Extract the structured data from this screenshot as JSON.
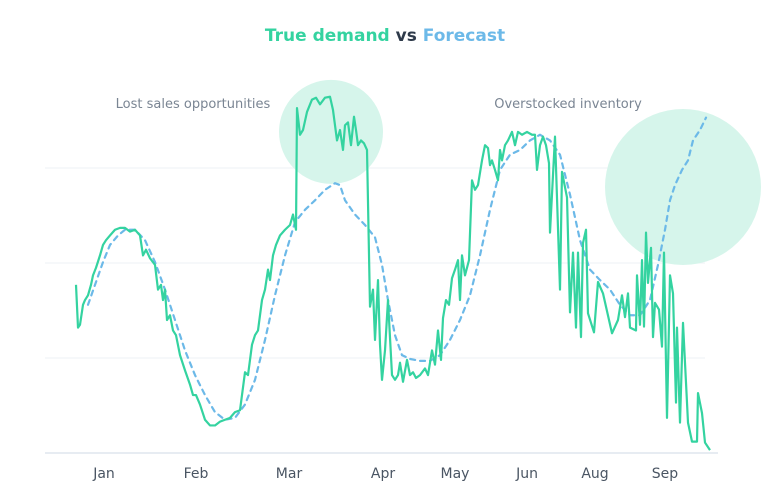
{
  "chart_data": {
    "type": "line",
    "title": {
      "part1": "True demand",
      "part2": "vs",
      "part3": "Forecast"
    },
    "xlabel": "",
    "ylabel": "",
    "xlim": [
      -16,
      322
    ],
    "ylim": [
      0,
      400
    ],
    "grid": true,
    "y_gridlines": [
      100,
      200,
      300
    ],
    "x_ticks": [
      {
        "label": "Jan",
        "x": 14
      },
      {
        "label": "Feb",
        "x": 60
      },
      {
        "label": "Mar",
        "x": 106.5
      },
      {
        "label": "Apr",
        "x": 153.5
      },
      {
        "label": "May",
        "x": 189.5
      },
      {
        "label": "Jun",
        "x": 225.5
      },
      {
        "label": "Aug",
        "x": 259.5
      },
      {
        "label": "Sep",
        "x": 294.5
      }
    ],
    "colors": {
      "true_demand": "#34d3a0",
      "forecast": "#6cb9e8",
      "vs": "#2e3a4a",
      "highlight": "#d6f5eb",
      "grid": "#eef1f4",
      "axis": "#dfe6ee"
    },
    "annotations": [
      {
        "text": "Lost sales opportunities",
        "x": 127.5,
        "y": 338
      },
      {
        "text": "Overstocked inventory",
        "x": 303.5,
        "y": 280
      }
    ],
    "series": [
      {
        "name": "True demand",
        "style": "solid",
        "points": [
          [
            0,
            177
          ],
          [
            1,
            132
          ],
          [
            2,
            135
          ],
          [
            3.5,
            156
          ],
          [
            4.5,
            161
          ],
          [
            6,
            166
          ],
          [
            7.5,
            177
          ],
          [
            8.5,
            187
          ],
          [
            10,
            195
          ],
          [
            12,
            208
          ],
          [
            13.5,
            219
          ],
          [
            15,
            224
          ],
          [
            17,
            229
          ],
          [
            19.5,
            235
          ],
          [
            22,
            237
          ],
          [
            24.5,
            237
          ],
          [
            27,
            233
          ],
          [
            29.5,
            235
          ],
          [
            32,
            229
          ],
          [
            33.5,
            208
          ],
          [
            35,
            214
          ],
          [
            37,
            205
          ],
          [
            39.5,
            198
          ],
          [
            41,
            172
          ],
          [
            42.5,
            177
          ],
          [
            43.5,
            161
          ],
          [
            44.5,
            172
          ],
          [
            45.5,
            140
          ],
          [
            47,
            145
          ],
          [
            48.5,
            129
          ],
          [
            50,
            124
          ],
          [
            52,
            103
          ],
          [
            54.5,
            87
          ],
          [
            57,
            72
          ],
          [
            58.5,
            61
          ],
          [
            60,
            61
          ],
          [
            62,
            51
          ],
          [
            64.5,
            35
          ],
          [
            67,
            29
          ],
          [
            69.5,
            29
          ],
          [
            72,
            33
          ],
          [
            74.5,
            35
          ],
          [
            77,
            37
          ],
          [
            79.5,
            43
          ],
          [
            82,
            45
          ],
          [
            84.5,
            85
          ],
          [
            86,
            82
          ],
          [
            88,
            114
          ],
          [
            89.5,
            124
          ],
          [
            91,
            129
          ],
          [
            93,
            161
          ],
          [
            94.5,
            172
          ],
          [
            96,
            193
          ],
          [
            97,
            182
          ],
          [
            98.5,
            208
          ],
          [
            100,
            219
          ],
          [
            102,
            229
          ],
          [
            104.5,
            235
          ],
          [
            107,
            240
          ],
          [
            108.5,
            251
          ],
          [
            110,
            235
          ],
          [
            110.5,
            363
          ],
          [
            112,
            335
          ],
          [
            113.5,
            340
          ],
          [
            115.5,
            359
          ],
          [
            118,
            372
          ],
          [
            120,
            374
          ],
          [
            122,
            367
          ],
          [
            124.5,
            374
          ],
          [
            127,
            375
          ],
          [
            128.5,
            361
          ],
          [
            130.5,
            329
          ],
          [
            132,
            340
          ],
          [
            133.5,
            319
          ],
          [
            134.5,
            345
          ],
          [
            136,
            348
          ],
          [
            137.5,
            324
          ],
          [
            139,
            354
          ],
          [
            140,
            340
          ],
          [
            141,
            324
          ],
          [
            142.5,
            329
          ],
          [
            144,
            326
          ],
          [
            145.5,
            319
          ],
          [
            147,
            154
          ],
          [
            148.5,
            172
          ],
          [
            149.5,
            119
          ],
          [
            151,
            182
          ],
          [
            152,
            114
          ],
          [
            153,
            77
          ],
          [
            154.5,
            108
          ],
          [
            156,
            161
          ],
          [
            158,
            82
          ],
          [
            159.5,
            77
          ],
          [
            161,
            82
          ],
          [
            162,
            95
          ],
          [
            163.5,
            75
          ],
          [
            165.5,
            98
          ],
          [
            167,
            82
          ],
          [
            168.5,
            85
          ],
          [
            170,
            79
          ],
          [
            172,
            82
          ],
          [
            174.5,
            89
          ],
          [
            176,
            82
          ],
          [
            178,
            108
          ],
          [
            179.5,
            93
          ],
          [
            181,
            129
          ],
          [
            182.5,
            98
          ],
          [
            183.5,
            142
          ],
          [
            185,
            161
          ],
          [
            186.5,
            156
          ],
          [
            188,
            184
          ],
          [
            189.5,
            193
          ],
          [
            191,
            203
          ],
          [
            192,
            161
          ],
          [
            193,
            208
          ],
          [
            194.5,
            187
          ],
          [
            196.5,
            203
          ],
          [
            198,
            287
          ],
          [
            199.5,
            277
          ],
          [
            201,
            282
          ],
          [
            203,
            308
          ],
          [
            204.5,
            324
          ],
          [
            206,
            321
          ],
          [
            207,
            303
          ],
          [
            208,
            308
          ],
          [
            209.5,
            298
          ],
          [
            211,
            287
          ],
          [
            212,
            319
          ],
          [
            213,
            308
          ],
          [
            214.5,
            324
          ],
          [
            216,
            329
          ],
          [
            218,
            338
          ],
          [
            219.5,
            324
          ],
          [
            221,
            338
          ],
          [
            223,
            335
          ],
          [
            225.5,
            338
          ],
          [
            228,
            335
          ],
          [
            229.5,
            335
          ],
          [
            230.5,
            298
          ],
          [
            232,
            324
          ],
          [
            233.5,
            333
          ],
          [
            235,
            324
          ],
          [
            236.5,
            305
          ],
          [
            237,
            232
          ],
          [
            239.5,
            333
          ],
          [
            242,
            172
          ],
          [
            243,
            296
          ],
          [
            245.5,
            269
          ],
          [
            247,
            148
          ],
          [
            248.5,
            211
          ],
          [
            250,
            132
          ],
          [
            251,
            211
          ],
          [
            252.5,
            122
          ],
          [
            253.5,
            221
          ],
          [
            255,
            235
          ],
          [
            256,
            147
          ],
          [
            259,
            127
          ],
          [
            261,
            180
          ],
          [
            263.5,
            168
          ],
          [
            268,
            126
          ],
          [
            271,
            140
          ],
          [
            273,
            166
          ],
          [
            274.5,
            143
          ],
          [
            276,
            168
          ],
          [
            277,
            132
          ],
          [
            280,
            129
          ],
          [
            280.5,
            187
          ],
          [
            282,
            135
          ],
          [
            283,
            203
          ],
          [
            284,
            133
          ],
          [
            285,
            232
          ],
          [
            286,
            179
          ],
          [
            287.5,
            216
          ],
          [
            288.5,
            122
          ],
          [
            289.5,
            158
          ],
          [
            291.5,
            151
          ],
          [
            293,
            112
          ],
          [
            294,
            211
          ],
          [
            295.5,
            37
          ],
          [
            297,
            187
          ],
          [
            298.5,
            168
          ],
          [
            300,
            53
          ],
          [
            300.5,
            132
          ],
          [
            302,
            32
          ],
          [
            303.5,
            137
          ],
          [
            306,
            32
          ],
          [
            308,
            12
          ],
          [
            310.5,
            12
          ],
          [
            311,
            63
          ],
          [
            313,
            42
          ],
          [
            314.5,
            11
          ],
          [
            317,
            3
          ]
        ]
      },
      {
        "name": "Forecast",
        "style": "dashed",
        "points": [
          [
            6,
            156
          ],
          [
            9.5,
            177
          ],
          [
            13.5,
            201
          ],
          [
            17,
            219
          ],
          [
            21,
            229
          ],
          [
            24.5,
            235
          ],
          [
            29.5,
            235
          ],
          [
            34.5,
            224
          ],
          [
            39.5,
            201
          ],
          [
            44.5,
            172
          ],
          [
            49.5,
            140
          ],
          [
            54.5,
            108
          ],
          [
            59.5,
            82
          ],
          [
            64.5,
            61
          ],
          [
            69.5,
            43
          ],
          [
            74.5,
            35
          ],
          [
            79.5,
            37
          ],
          [
            84.5,
            51
          ],
          [
            89.5,
            77
          ],
          [
            94.5,
            119
          ],
          [
            99.5,
            166
          ],
          [
            104.5,
            208
          ],
          [
            109.5,
            243
          ],
          [
            114.5,
            256
          ],
          [
            119.5,
            266
          ],
          [
            124.5,
            277
          ],
          [
            129.5,
            284
          ],
          [
            132,
            282
          ],
          [
            134.5,
            266
          ],
          [
            139.5,
            251
          ],
          [
            144.5,
            240
          ],
          [
            149.5,
            227
          ],
          [
            153,
            198
          ],
          [
            156,
            161
          ],
          [
            159.5,
            124
          ],
          [
            163,
            103
          ],
          [
            167,
            99
          ],
          [
            172,
            97
          ],
          [
            177,
            97
          ],
          [
            182,
            103
          ],
          [
            187,
            119
          ],
          [
            192,
            140
          ],
          [
            197,
            166
          ],
          [
            202,
            208
          ],
          [
            207,
            256
          ],
          [
            212,
            298
          ],
          [
            217,
            314
          ],
          [
            222,
            319
          ],
          [
            227,
            329
          ],
          [
            232,
            335
          ],
          [
            237,
            329
          ],
          [
            242,
            314
          ],
          [
            247,
            272
          ],
          [
            252,
            224
          ],
          [
            257,
            193
          ],
          [
            262,
            182
          ],
          [
            267,
            172
          ],
          [
            272,
            156
          ],
          [
            277,
            145
          ],
          [
            282,
            145
          ],
          [
            287,
            161
          ],
          [
            291,
            198
          ],
          [
            294.5,
            235
          ],
          [
            297,
            266
          ],
          [
            299.5,
            282
          ],
          [
            303,
            298
          ],
          [
            306,
            308
          ],
          [
            308.5,
            329
          ],
          [
            312,
            340
          ],
          [
            315,
            353
          ]
        ]
      }
    ]
  }
}
